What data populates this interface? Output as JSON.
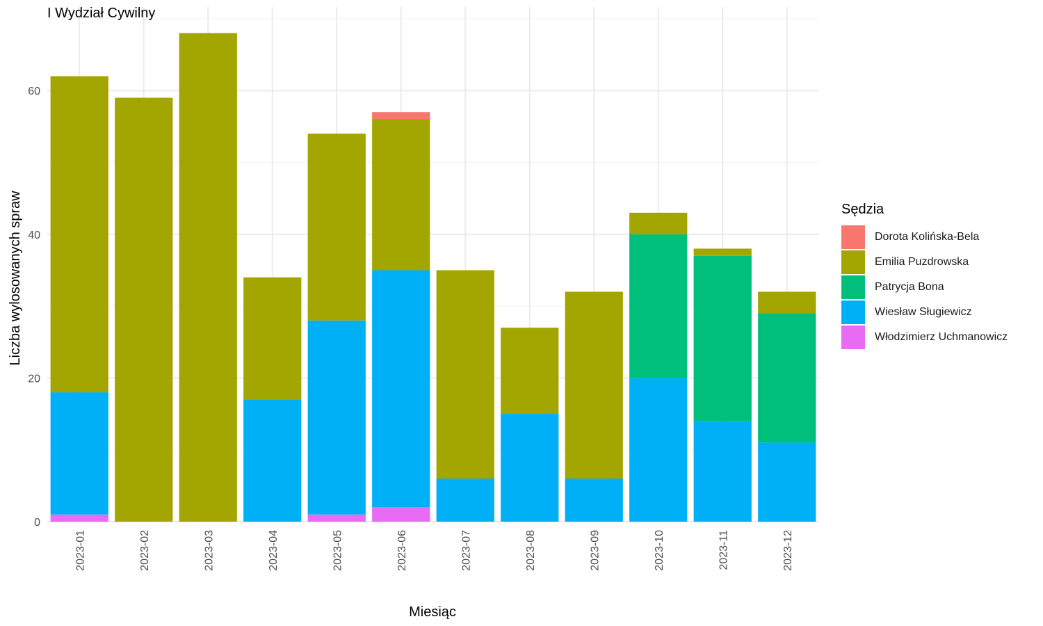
{
  "chart_data": {
    "type": "bar",
    "stacked": true,
    "title": "I Wydział Cywilny",
    "xlabel": "Miesiąc",
    "ylabel": "Liczba wylosowanych spraw",
    "legend_title": "Sędzia",
    "legend_position": "right",
    "grid": true,
    "ylim": [
      0,
      69
    ],
    "yticks": [
      0,
      20,
      40,
      60
    ],
    "categories": [
      "2023-01",
      "2023-02",
      "2023-03",
      "2023-04",
      "2023-05",
      "2023-06",
      "2023-07",
      "2023-08",
      "2023-09",
      "2023-10",
      "2023-11",
      "2023-12"
    ],
    "series": [
      {
        "name": "Dorota Kolińska-Bela",
        "color": "#F8766D",
        "values": [
          0,
          0,
          0,
          0,
          0,
          1,
          0,
          0,
          0,
          0,
          0,
          0
        ]
      },
      {
        "name": "Emilia Puzdrowska",
        "color": "#A3A500",
        "values": [
          44,
          59,
          68,
          17,
          26,
          21,
          29,
          12,
          26,
          3,
          1,
          3
        ]
      },
      {
        "name": "Patrycja Bona",
        "color": "#00BF7D",
        "values": [
          0,
          0,
          0,
          0,
          0,
          0,
          0,
          0,
          0,
          20,
          23,
          18
        ]
      },
      {
        "name": "Wiesław Sługiewicz",
        "color": "#00B0F6",
        "values": [
          17,
          0,
          0,
          17,
          27,
          33,
          6,
          15,
          6,
          20,
          14,
          11
        ]
      },
      {
        "name": "Włodzimierz Uchmanowicz",
        "color": "#E76BF3",
        "values": [
          1,
          0,
          0,
          0,
          1,
          2,
          0,
          0,
          0,
          0,
          0,
          0
        ]
      }
    ]
  }
}
